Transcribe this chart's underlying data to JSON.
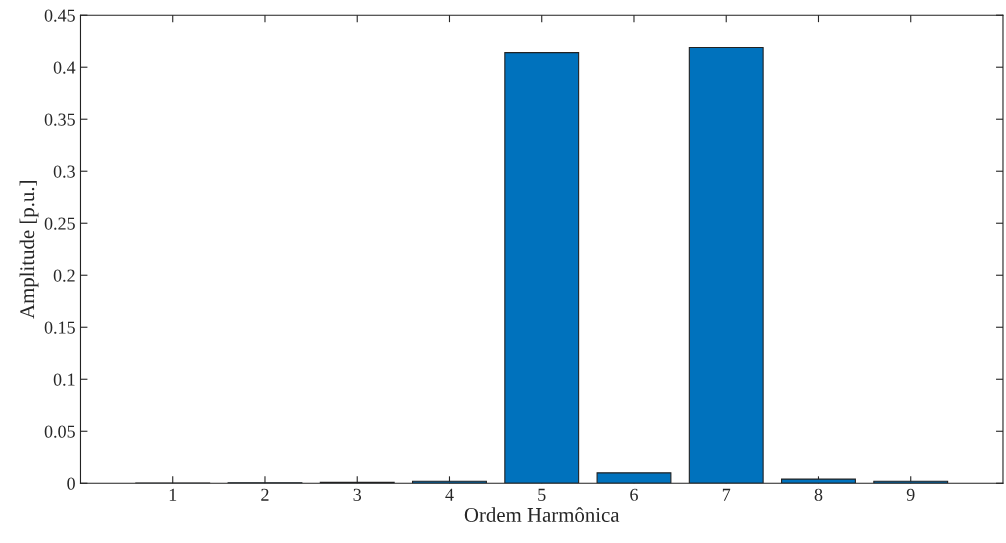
{
  "chart_data": {
    "type": "bar",
    "xlabel": "Ordem Harmônica",
    "ylabel": "Amplitude [p.u.]",
    "x": [
      1,
      2,
      3,
      4,
      5,
      6,
      7,
      8,
      9
    ],
    "values": [
      0.0002,
      0.0004,
      0.001,
      0.002,
      0.414,
      0.01,
      0.419,
      0.004,
      0.002
    ],
    "color": "#0072bd",
    "xlim": [
      0,
      10
    ],
    "xticks": [
      1,
      2,
      3,
      4,
      5,
      6,
      7,
      8,
      9
    ],
    "ylim": [
      0,
      0.45
    ],
    "yticks": [
      0,
      0.05,
      0.1,
      0.15,
      0.2,
      0.25,
      0.3,
      0.35,
      0.4,
      0.45
    ],
    "grid": false
  }
}
